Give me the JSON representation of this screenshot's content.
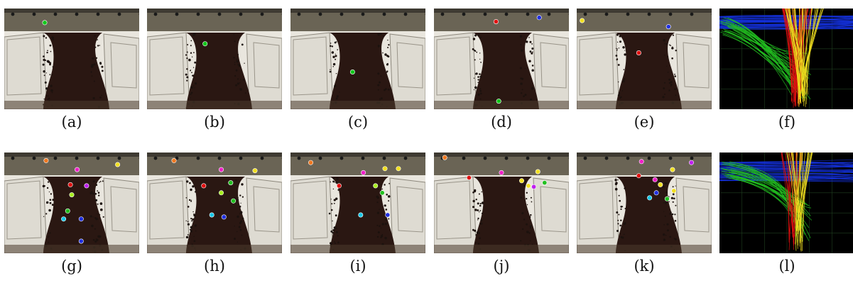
{
  "figure": {
    "captions": [
      "(a)",
      "(b)",
      "(c)",
      "(d)",
      "(e)",
      "(f)",
      "(g)",
      "(h)",
      "(i)",
      "(j)",
      "(k)",
      "(l)"
    ]
  },
  "colors": {
    "road": "#2a1712",
    "snow": "#e7e4dc",
    "sidewalk": "#6a6455",
    "track_red": "#e01010",
    "track_yellow": "#f2e020",
    "track_green": "#22c020",
    "track_blue": "#1430d8",
    "grid": "#1f3f1f"
  },
  "panels": [
    {
      "id": "a",
      "type": "scene",
      "markers": [
        {
          "x": 0.3,
          "y": 0.14,
          "color": "#12c81a"
        }
      ]
    },
    {
      "id": "b",
      "type": "scene",
      "markers": [
        {
          "x": 0.43,
          "y": 0.35,
          "color": "#12c81a"
        }
      ]
    },
    {
      "id": "c",
      "type": "scene",
      "markers": [
        {
          "x": 0.46,
          "y": 0.63,
          "color": "#12c81a"
        }
      ]
    },
    {
      "id": "d",
      "type": "scene",
      "markers": [
        {
          "x": 0.48,
          "y": 0.92,
          "color": "#12c81a"
        },
        {
          "x": 0.46,
          "y": 0.13,
          "color": "#e01010"
        },
        {
          "x": 0.78,
          "y": 0.09,
          "color": "#2030e0"
        }
      ]
    },
    {
      "id": "e",
      "type": "scene",
      "markers": [
        {
          "x": 0.46,
          "y": 0.44,
          "color": "#e01010"
        },
        {
          "x": 0.04,
          "y": 0.12,
          "color": "#f2e020"
        },
        {
          "x": 0.68,
          "y": 0.18,
          "color": "#2030e0"
        }
      ]
    },
    {
      "id": "f",
      "type": "tracks"
    },
    {
      "id": "g",
      "type": "scene",
      "markers": [
        {
          "x": 0.31,
          "y": 0.08,
          "color": "#f07820"
        },
        {
          "x": 0.54,
          "y": 0.17,
          "color": "#f020c8"
        },
        {
          "x": 0.84,
          "y": 0.12,
          "color": "#f2e020"
        },
        {
          "x": 0.49,
          "y": 0.32,
          "color": "#e01010"
        },
        {
          "x": 0.61,
          "y": 0.33,
          "color": "#c020f0"
        },
        {
          "x": 0.5,
          "y": 0.42,
          "color": "#a8f020"
        },
        {
          "x": 0.47,
          "y": 0.58,
          "color": "#22c020"
        },
        {
          "x": 0.44,
          "y": 0.66,
          "color": "#18c8e8"
        },
        {
          "x": 0.57,
          "y": 0.66,
          "color": "#2030e0"
        },
        {
          "x": 0.57,
          "y": 0.88,
          "color": "#2030e0"
        }
      ]
    },
    {
      "id": "h",
      "type": "scene",
      "markers": [
        {
          "x": 0.2,
          "y": 0.08,
          "color": "#f07820"
        },
        {
          "x": 0.55,
          "y": 0.17,
          "color": "#f020c8"
        },
        {
          "x": 0.8,
          "y": 0.18,
          "color": "#f2e020"
        },
        {
          "x": 0.42,
          "y": 0.33,
          "color": "#e01010"
        },
        {
          "x": 0.55,
          "y": 0.4,
          "color": "#a8f020"
        },
        {
          "x": 0.62,
          "y": 0.3,
          "color": "#22c020"
        },
        {
          "x": 0.64,
          "y": 0.48,
          "color": "#22c020"
        },
        {
          "x": 0.48,
          "y": 0.62,
          "color": "#18c8e8"
        },
        {
          "x": 0.57,
          "y": 0.64,
          "color": "#2030e0"
        }
      ]
    },
    {
      "id": "i",
      "type": "scene",
      "markers": [
        {
          "x": 0.15,
          "y": 0.1,
          "color": "#f07820"
        },
        {
          "x": 0.54,
          "y": 0.2,
          "color": "#f020c8"
        },
        {
          "x": 0.8,
          "y": 0.16,
          "color": "#f2e020"
        },
        {
          "x": 0.7,
          "y": 0.16,
          "color": "#f2e020"
        },
        {
          "x": 0.36,
          "y": 0.33,
          "color": "#e01010"
        },
        {
          "x": 0.63,
          "y": 0.33,
          "color": "#a8f020"
        },
        {
          "x": 0.68,
          "y": 0.4,
          "color": "#22c020"
        },
        {
          "x": 0.52,
          "y": 0.62,
          "color": "#18c8e8"
        },
        {
          "x": 0.72,
          "y": 0.62,
          "color": "#2030e0"
        }
      ]
    },
    {
      "id": "j",
      "type": "scene",
      "markers": [
        {
          "x": 0.08,
          "y": 0.05,
          "color": "#f07820"
        },
        {
          "x": 0.26,
          "y": 0.25,
          "color": "#e01010"
        },
        {
          "x": 0.5,
          "y": 0.2,
          "color": "#f020c8"
        },
        {
          "x": 0.77,
          "y": 0.19,
          "color": "#f2e020"
        },
        {
          "x": 0.65,
          "y": 0.28,
          "color": "#f2e020"
        },
        {
          "x": 0.82,
          "y": 0.3,
          "color": "#22c020"
        },
        {
          "x": 0.7,
          "y": 0.33,
          "color": "#f2e020"
        },
        {
          "x": 0.74,
          "y": 0.34,
          "color": "#c020f0"
        }
      ]
    },
    {
      "id": "k",
      "type": "scene",
      "markers": [
        {
          "x": 0.48,
          "y": 0.09,
          "color": "#f020c8"
        },
        {
          "x": 0.85,
          "y": 0.1,
          "color": "#c020f0"
        },
        {
          "x": 0.71,
          "y": 0.17,
          "color": "#f2e020"
        },
        {
          "x": 0.46,
          "y": 0.23,
          "color": "#e01010"
        },
        {
          "x": 0.58,
          "y": 0.27,
          "color": "#f020c8"
        },
        {
          "x": 0.62,
          "y": 0.32,
          "color": "#f2e020"
        },
        {
          "x": 0.59,
          "y": 0.4,
          "color": "#2030e0"
        },
        {
          "x": 0.54,
          "y": 0.45,
          "color": "#18c8e8"
        },
        {
          "x": 0.67,
          "y": 0.46,
          "color": "#22c020"
        },
        {
          "x": 0.72,
          "y": 0.38,
          "color": "#f2e020"
        }
      ]
    },
    {
      "id": "l",
      "type": "tracks"
    }
  ]
}
